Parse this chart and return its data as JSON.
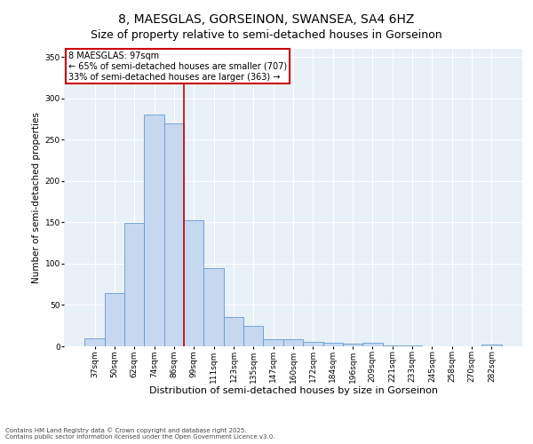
{
  "title": "8, MAESGLAS, GORSEINON, SWANSEA, SA4 6HZ",
  "subtitle": "Size of property relative to semi-detached houses in Gorseinon",
  "xlabel": "Distribution of semi-detached houses by size in Gorseinon",
  "ylabel": "Number of semi-detached properties",
  "categories": [
    "37sqm",
    "50sqm",
    "62sqm",
    "74sqm",
    "86sqm",
    "99sqm",
    "111sqm",
    "123sqm",
    "135sqm",
    "147sqm",
    "160sqm",
    "172sqm",
    "184sqm",
    "196sqm",
    "209sqm",
    "221sqm",
    "233sqm",
    "245sqm",
    "258sqm",
    "270sqm",
    "282sqm"
  ],
  "values": [
    10,
    64,
    149,
    280,
    270,
    153,
    95,
    35,
    25,
    9,
    9,
    5,
    4,
    3,
    4,
    1,
    1,
    0,
    0,
    0,
    2
  ],
  "bar_color": "#c5d8f0",
  "bar_edge_color": "#6699cc",
  "vline_x_pos": 4.5,
  "vline_color": "#cc0000",
  "annotation_title": "8 MAESGLAS: 97sqm",
  "annotation_line2": "← 65% of semi-detached houses are smaller (707)",
  "annotation_line3": "33% of semi-detached houses are larger (363) →",
  "annotation_box_color": "#ffffff",
  "annotation_box_edge_color": "#cc0000",
  "ylim": [
    0,
    360
  ],
  "yticks": [
    0,
    50,
    100,
    150,
    200,
    250,
    300,
    350
  ],
  "footer_line1": "Contains HM Land Registry data © Crown copyright and database right 2025.",
  "footer_line2": "Contains public sector information licensed under the Open Government Licence v3.0.",
  "bg_color": "#e8f0f8",
  "fig_bg_color": "#ffffff",
  "title_fontsize": 10,
  "subtitle_fontsize": 9,
  "xlabel_fontsize": 8,
  "ylabel_fontsize": 7.5,
  "tick_fontsize": 6.5,
  "annotation_fontsize": 7,
  "footer_fontsize": 5
}
